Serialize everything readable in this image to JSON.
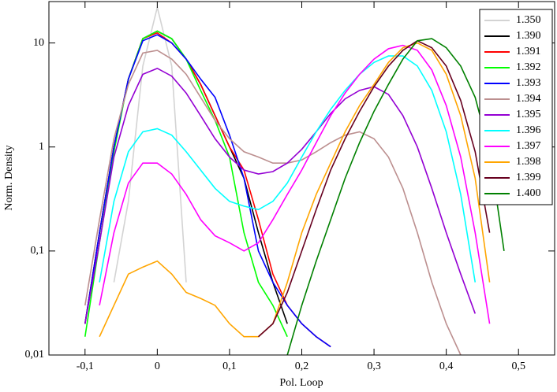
{
  "chart_data": {
    "type": "line",
    "x_label": "Pol. Loop",
    "y_label": "Norm. Density",
    "yscale": "log",
    "legend": "upper right",
    "xlim": [
      -0.15,
      0.55
    ],
    "ylim": [
      0.01,
      25
    ],
    "xticks": [
      {
        "value": -0.1,
        "label": "-0,1"
      },
      0,
      {
        "value": 0.1,
        "label": "0,1"
      },
      {
        "value": 0.2,
        "label": "0,2"
      },
      {
        "value": 0.3,
        "label": "0,3"
      },
      {
        "value": 0.4,
        "label": "0,4"
      },
      {
        "value": 0.5,
        "label": "0,5"
      }
    ],
    "yticks": [
      {
        "value": 0.01,
        "label": "0,01"
      },
      {
        "value": 0.1,
        "label": "0,1"
      },
      1,
      10
    ],
    "x": [
      -0.1,
      -0.08,
      -0.06,
      -0.04,
      -0.02,
      0,
      0.02,
      0.04,
      0.06,
      0.08,
      0.1,
      0.12,
      0.14,
      0.16,
      0.18,
      0.2,
      0.22,
      0.24,
      0.26,
      0.28,
      0.3,
      0.32,
      0.34,
      0.36,
      0.38,
      0.4,
      0.42,
      0.44,
      0.46,
      0.48
    ],
    "series": [
      {
        "name": "1.350",
        "color": "#d3d3d3",
        "values": [
          null,
          null,
          0.05,
          0.3,
          6,
          22,
          6,
          0.05,
          null,
          null,
          null,
          null,
          null,
          null,
          null,
          null,
          null,
          null,
          null,
          null,
          null,
          null,
          null,
          null,
          null,
          null,
          null,
          null,
          null,
          null
        ]
      },
      {
        "name": "1.390",
        "color": "#000000",
        "values": [
          0.02,
          0.15,
          1,
          4.5,
          11,
          13,
          11,
          7,
          4,
          2,
          1,
          0.5,
          0.15,
          0.05,
          0.02,
          null,
          null,
          null,
          null,
          null,
          null,
          null,
          null,
          null,
          null,
          null,
          null,
          null,
          null,
          null
        ]
      },
      {
        "name": "1.391",
        "color": "#ff0000",
        "values": [
          0.02,
          0.15,
          1,
          4.5,
          11,
          12.5,
          10,
          7,
          4,
          2,
          1,
          0.6,
          0.2,
          0.06,
          0.03,
          0.02,
          0.015,
          0.012,
          null,
          null,
          null,
          null,
          null,
          null,
          null,
          null,
          null,
          null,
          null,
          null
        ]
      },
      {
        "name": "1.392",
        "color": "#00ff00",
        "values": [
          0.015,
          0.12,
          0.9,
          4.5,
          11,
          13,
          11,
          7,
          3.5,
          1.8,
          0.8,
          0.15,
          0.05,
          0.03,
          0.015,
          null,
          null,
          null,
          null,
          null,
          null,
          null,
          null,
          null,
          null,
          null,
          null,
          null,
          null,
          null
        ]
      },
      {
        "name": "1.393",
        "color": "#0000ff",
        "values": [
          0.02,
          0.15,
          1,
          4.5,
          10.5,
          12,
          10,
          7,
          4.5,
          3,
          1.3,
          0.5,
          0.1,
          0.05,
          0.03,
          0.02,
          0.015,
          0.012,
          null,
          null,
          null,
          null,
          null,
          null,
          null,
          null,
          null,
          null,
          null,
          null
        ]
      },
      {
        "name": "1.394",
        "color": "#bc8f8f",
        "values": [
          0.03,
          0.2,
          1.2,
          4,
          8,
          8.5,
          7,
          5,
          3,
          1.8,
          1.2,
          0.9,
          0.8,
          0.7,
          0.7,
          0.75,
          0.9,
          1.1,
          1.3,
          1.4,
          1.2,
          0.8,
          0.4,
          0.15,
          0.05,
          0.02,
          0.01,
          null,
          null,
          null
        ]
      },
      {
        "name": "1.395",
        "color": "#9400d3",
        "values": [
          0.02,
          0.12,
          0.8,
          2.5,
          5,
          5.7,
          4.8,
          3.3,
          2,
          1.2,
          0.8,
          0.6,
          0.55,
          0.58,
          0.7,
          0.95,
          1.4,
          2.1,
          2.9,
          3.5,
          3.8,
          3.2,
          2,
          1,
          0.4,
          0.15,
          0.06,
          0.025,
          null,
          null
        ]
      },
      {
        "name": "1.396",
        "color": "#00ffff",
        "values": [
          null,
          0.05,
          0.3,
          0.9,
          1.4,
          1.5,
          1.3,
          0.9,
          0.6,
          0.4,
          0.3,
          0.27,
          0.25,
          0.3,
          0.45,
          0.8,
          1.4,
          2.3,
          3.5,
          5,
          6.5,
          7.5,
          7.5,
          6,
          3.5,
          1.4,
          0.35,
          0.05,
          null,
          null
        ]
      },
      {
        "name": "1.397",
        "color": "#ff00ff",
        "values": [
          null,
          0.03,
          0.15,
          0.45,
          0.7,
          0.7,
          0.55,
          0.35,
          0.2,
          0.14,
          0.12,
          0.1,
          0.12,
          0.2,
          0.35,
          0.6,
          1.1,
          2,
          3.3,
          5,
          7,
          8.8,
          9.5,
          8.5,
          5.5,
          2.5,
          0.8,
          0.15,
          0.02,
          null
        ]
      },
      {
        "name": "1.398",
        "color": "#ffa500",
        "values": [
          null,
          0.015,
          0.03,
          0.06,
          0.07,
          0.08,
          0.06,
          0.04,
          0.035,
          0.03,
          0.02,
          0.015,
          0.015,
          0.02,
          0.05,
          0.15,
          0.35,
          0.7,
          1.4,
          2.5,
          4,
          6.5,
          9,
          10,
          8.5,
          5,
          2,
          0.5,
          0.05,
          null
        ]
      },
      {
        "name": "1.399",
        "color": "#67001f",
        "values": [
          null,
          null,
          null,
          null,
          null,
          null,
          null,
          null,
          null,
          null,
          null,
          null,
          0.015,
          0.02,
          0.04,
          0.1,
          0.25,
          0.6,
          1.2,
          2.2,
          3.8,
          6,
          8.5,
          10.5,
          9,
          6,
          2.8,
          0.9,
          0.15,
          null
        ]
      },
      {
        "name": "1.400",
        "color": "#008000",
        "values": [
          null,
          null,
          null,
          null,
          null,
          null,
          null,
          null,
          null,
          null,
          null,
          null,
          null,
          null,
          0.01,
          0.03,
          0.08,
          0.2,
          0.5,
          1.1,
          2.2,
          4,
          7,
          10.5,
          11,
          9,
          6,
          3,
          0.9,
          0.1
        ]
      }
    ]
  }
}
